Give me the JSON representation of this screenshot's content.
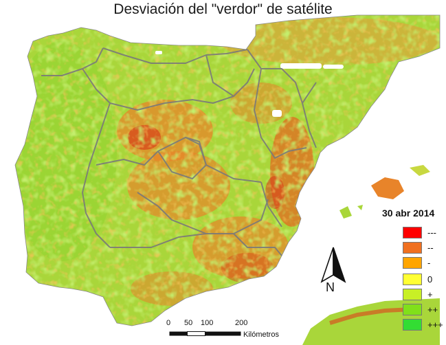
{
  "title": "Desviación del \"verdor\" de satélite",
  "legend": {
    "date": "30 abr 2014",
    "classes": [
      {
        "label": "---",
        "color": "#ff0000"
      },
      {
        "label": "--",
        "color": "#f07020"
      },
      {
        "label": "-",
        "color": "#ffa500"
      },
      {
        "label": "0",
        "color": "#ffff33"
      },
      {
        "label": "+",
        "color": "#c8f026"
      },
      {
        "label": "++",
        "color": "#80e01a"
      },
      {
        "label": "+++",
        "color": "#33dd33"
      }
    ]
  },
  "north_arrow": {
    "label": "N"
  },
  "scale_bar": {
    "ticks": [
      "0",
      "50",
      "100",
      "200"
    ],
    "unit": "Kilómetros"
  },
  "map": {
    "regions": "Iberian Peninsula, Balearic Islands, North Africa coast",
    "colors": {
      "land_base": "#a9d63a",
      "green_high": "#7fd62a",
      "orange": "#e8842a",
      "red": "#e0401a",
      "border": "#7a7a7a"
    }
  }
}
